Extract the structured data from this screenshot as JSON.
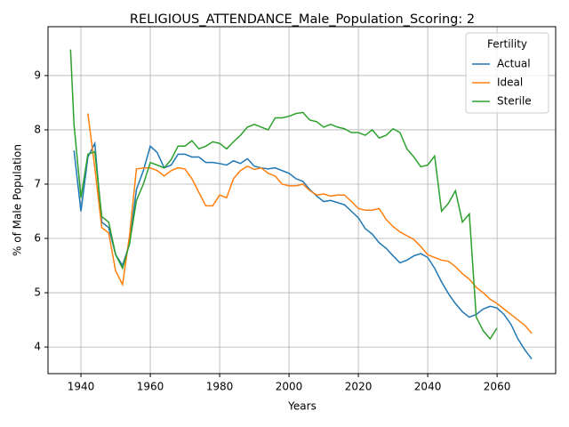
{
  "chart_data": {
    "type": "line",
    "title": "RELIGIOUS_ATTENDANCE_Male_Population_Scoring: 2",
    "x_label": "Years",
    "y_label": "% of Male Population",
    "legend_title": "Fertility",
    "legend_position": "upper right",
    "xlim": [
      1930.5,
      2076.9
    ],
    "ylim": [
      3.51,
      9.9
    ],
    "xticks": [
      1940,
      1960,
      1980,
      2000,
      2020,
      2040,
      2060
    ],
    "yticks": [
      4,
      5,
      6,
      7,
      8,
      9
    ],
    "x": [
      1937,
      1938,
      1940,
      1942,
      1944,
      1946,
      1948,
      1950,
      1952,
      1954,
      1956,
      1958,
      1960,
      1962,
      1964,
      1966,
      1968,
      1970,
      1972,
      1974,
      1976,
      1978,
      1980,
      1982,
      1984,
      1986,
      1988,
      1990,
      1992,
      1994,
      1996,
      1998,
      2000,
      2002,
      2004,
      2006,
      2008,
      2010,
      2012,
      2014,
      2016,
      2018,
      2020,
      2022,
      2024,
      2026,
      2028,
      2030,
      2032,
      2034,
      2036,
      2038,
      2040,
      2042,
      2044,
      2046,
      2048,
      2050,
      2052,
      2054,
      2056,
      2058,
      2060,
      2062,
      2064,
      2066,
      2068,
      2070
    ],
    "series": [
      {
        "name": "Actual",
        "color": "#1f77b4",
        "values": [
          null,
          7.62,
          6.5,
          7.5,
          7.75,
          6.3,
          6.2,
          5.7,
          5.5,
          5.9,
          6.9,
          7.25,
          7.7,
          7.58,
          7.3,
          7.35,
          7.55,
          7.55,
          7.5,
          7.5,
          7.4,
          7.4,
          7.38,
          7.35,
          7.43,
          7.38,
          7.47,
          7.33,
          7.3,
          7.28,
          7.3,
          7.25,
          7.2,
          7.1,
          7.05,
          6.9,
          6.78,
          6.68,
          6.7,
          6.66,
          6.62,
          6.5,
          6.38,
          6.18,
          6.08,
          5.92,
          5.82,
          5.68,
          5.55,
          5.6,
          5.68,
          5.72,
          5.65,
          5.45,
          5.2,
          4.98,
          4.8,
          4.65,
          4.55,
          4.6,
          4.7,
          4.75,
          4.72,
          4.6,
          4.42,
          4.15,
          3.95,
          3.78
        ]
      },
      {
        "name": "Ideal",
        "color": "#ff7f0e",
        "values": [
          null,
          null,
          null,
          8.3,
          7.3,
          6.2,
          6.1,
          5.4,
          5.15,
          6.05,
          7.28,
          7.3,
          7.3,
          7.25,
          7.15,
          7.25,
          7.3,
          7.28,
          7.1,
          6.85,
          6.6,
          6.6,
          6.8,
          6.75,
          7.1,
          7.25,
          7.33,
          7.27,
          7.3,
          7.2,
          7.15,
          7.0,
          6.97,
          6.97,
          7.0,
          6.88,
          6.8,
          6.82,
          6.78,
          6.8,
          6.8,
          6.68,
          6.55,
          6.52,
          6.52,
          6.55,
          6.35,
          6.22,
          6.12,
          6.05,
          5.98,
          5.85,
          5.7,
          5.65,
          5.6,
          5.58,
          5.48,
          5.35,
          5.25,
          5.1,
          5.0,
          4.88,
          4.8,
          4.7,
          4.6,
          4.5,
          4.4,
          4.25
        ]
      },
      {
        "name": "Sterile",
        "color": "#2ca02c",
        "values": [
          9.48,
          8.1,
          6.75,
          7.55,
          7.6,
          6.4,
          6.3,
          5.7,
          5.45,
          5.9,
          6.7,
          7.0,
          7.4,
          7.35,
          7.3,
          7.45,
          7.7,
          7.7,
          7.8,
          7.65,
          7.7,
          7.78,
          7.75,
          7.65,
          7.78,
          7.9,
          8.05,
          8.1,
          8.05,
          8.0,
          8.22,
          8.22,
          8.25,
          8.3,
          8.32,
          8.18,
          8.15,
          8.05,
          8.1,
          8.05,
          8.02,
          7.95,
          7.95,
          7.9,
          8.0,
          7.85,
          7.9,
          8.02,
          7.95,
          7.65,
          7.5,
          7.32,
          7.35,
          7.52,
          6.5,
          6.65,
          6.88,
          6.3,
          6.45,
          4.55,
          4.3,
          4.15,
          4.35,
          null,
          null,
          null,
          null,
          null
        ]
      }
    ],
    "grid": true
  }
}
